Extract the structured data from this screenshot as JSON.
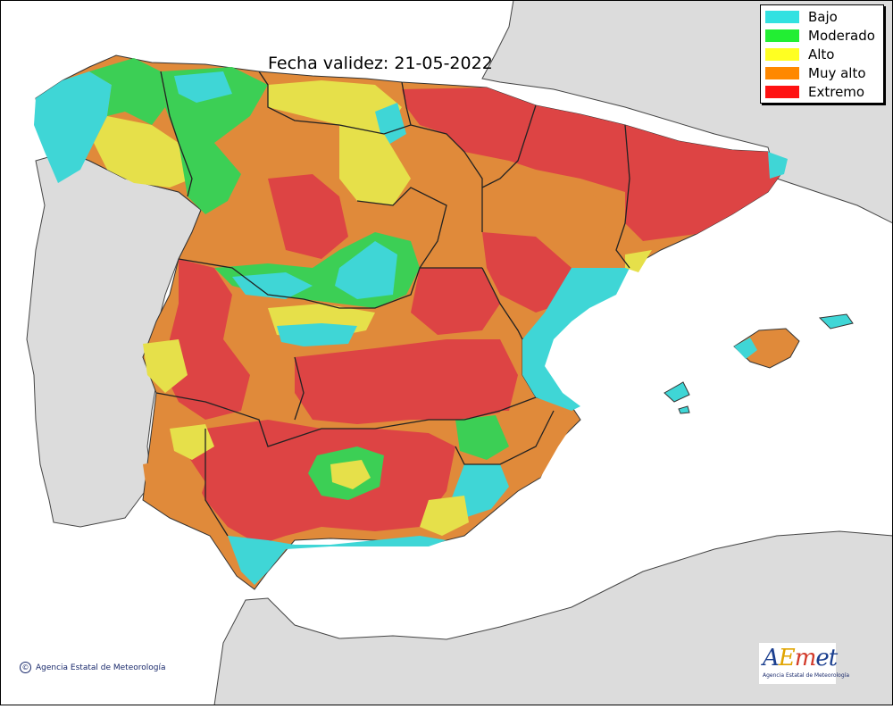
{
  "title": "Fecha validez: 21-05-2022",
  "legend": {
    "items": [
      {
        "label": "Bajo",
        "color": "#32e1e1"
      },
      {
        "label": "Moderado",
        "color": "#22ee33"
      },
      {
        "label": "Alto",
        "color": "#ffff22"
      },
      {
        "label": "Muy alto",
        "color": "#ff8800"
      },
      {
        "label": "Extremo",
        "color": "#ff1111"
      }
    ]
  },
  "colors": {
    "sea": "#ffffff",
    "land_background": "#dcdcdc",
    "bajo": "#3fd6d6",
    "moderado": "#3ccf55",
    "alto": "#e6e04a",
    "muy_alto": "#e08a3a",
    "extremo": "#dd4444"
  },
  "credit": {
    "symbol": "©",
    "text": "Agencia Estatal de Meteorología"
  },
  "logo": {
    "letters": [
      "A",
      "E",
      "m",
      "et"
    ],
    "subtitle": "Agencia Estatal de Meteorología"
  }
}
